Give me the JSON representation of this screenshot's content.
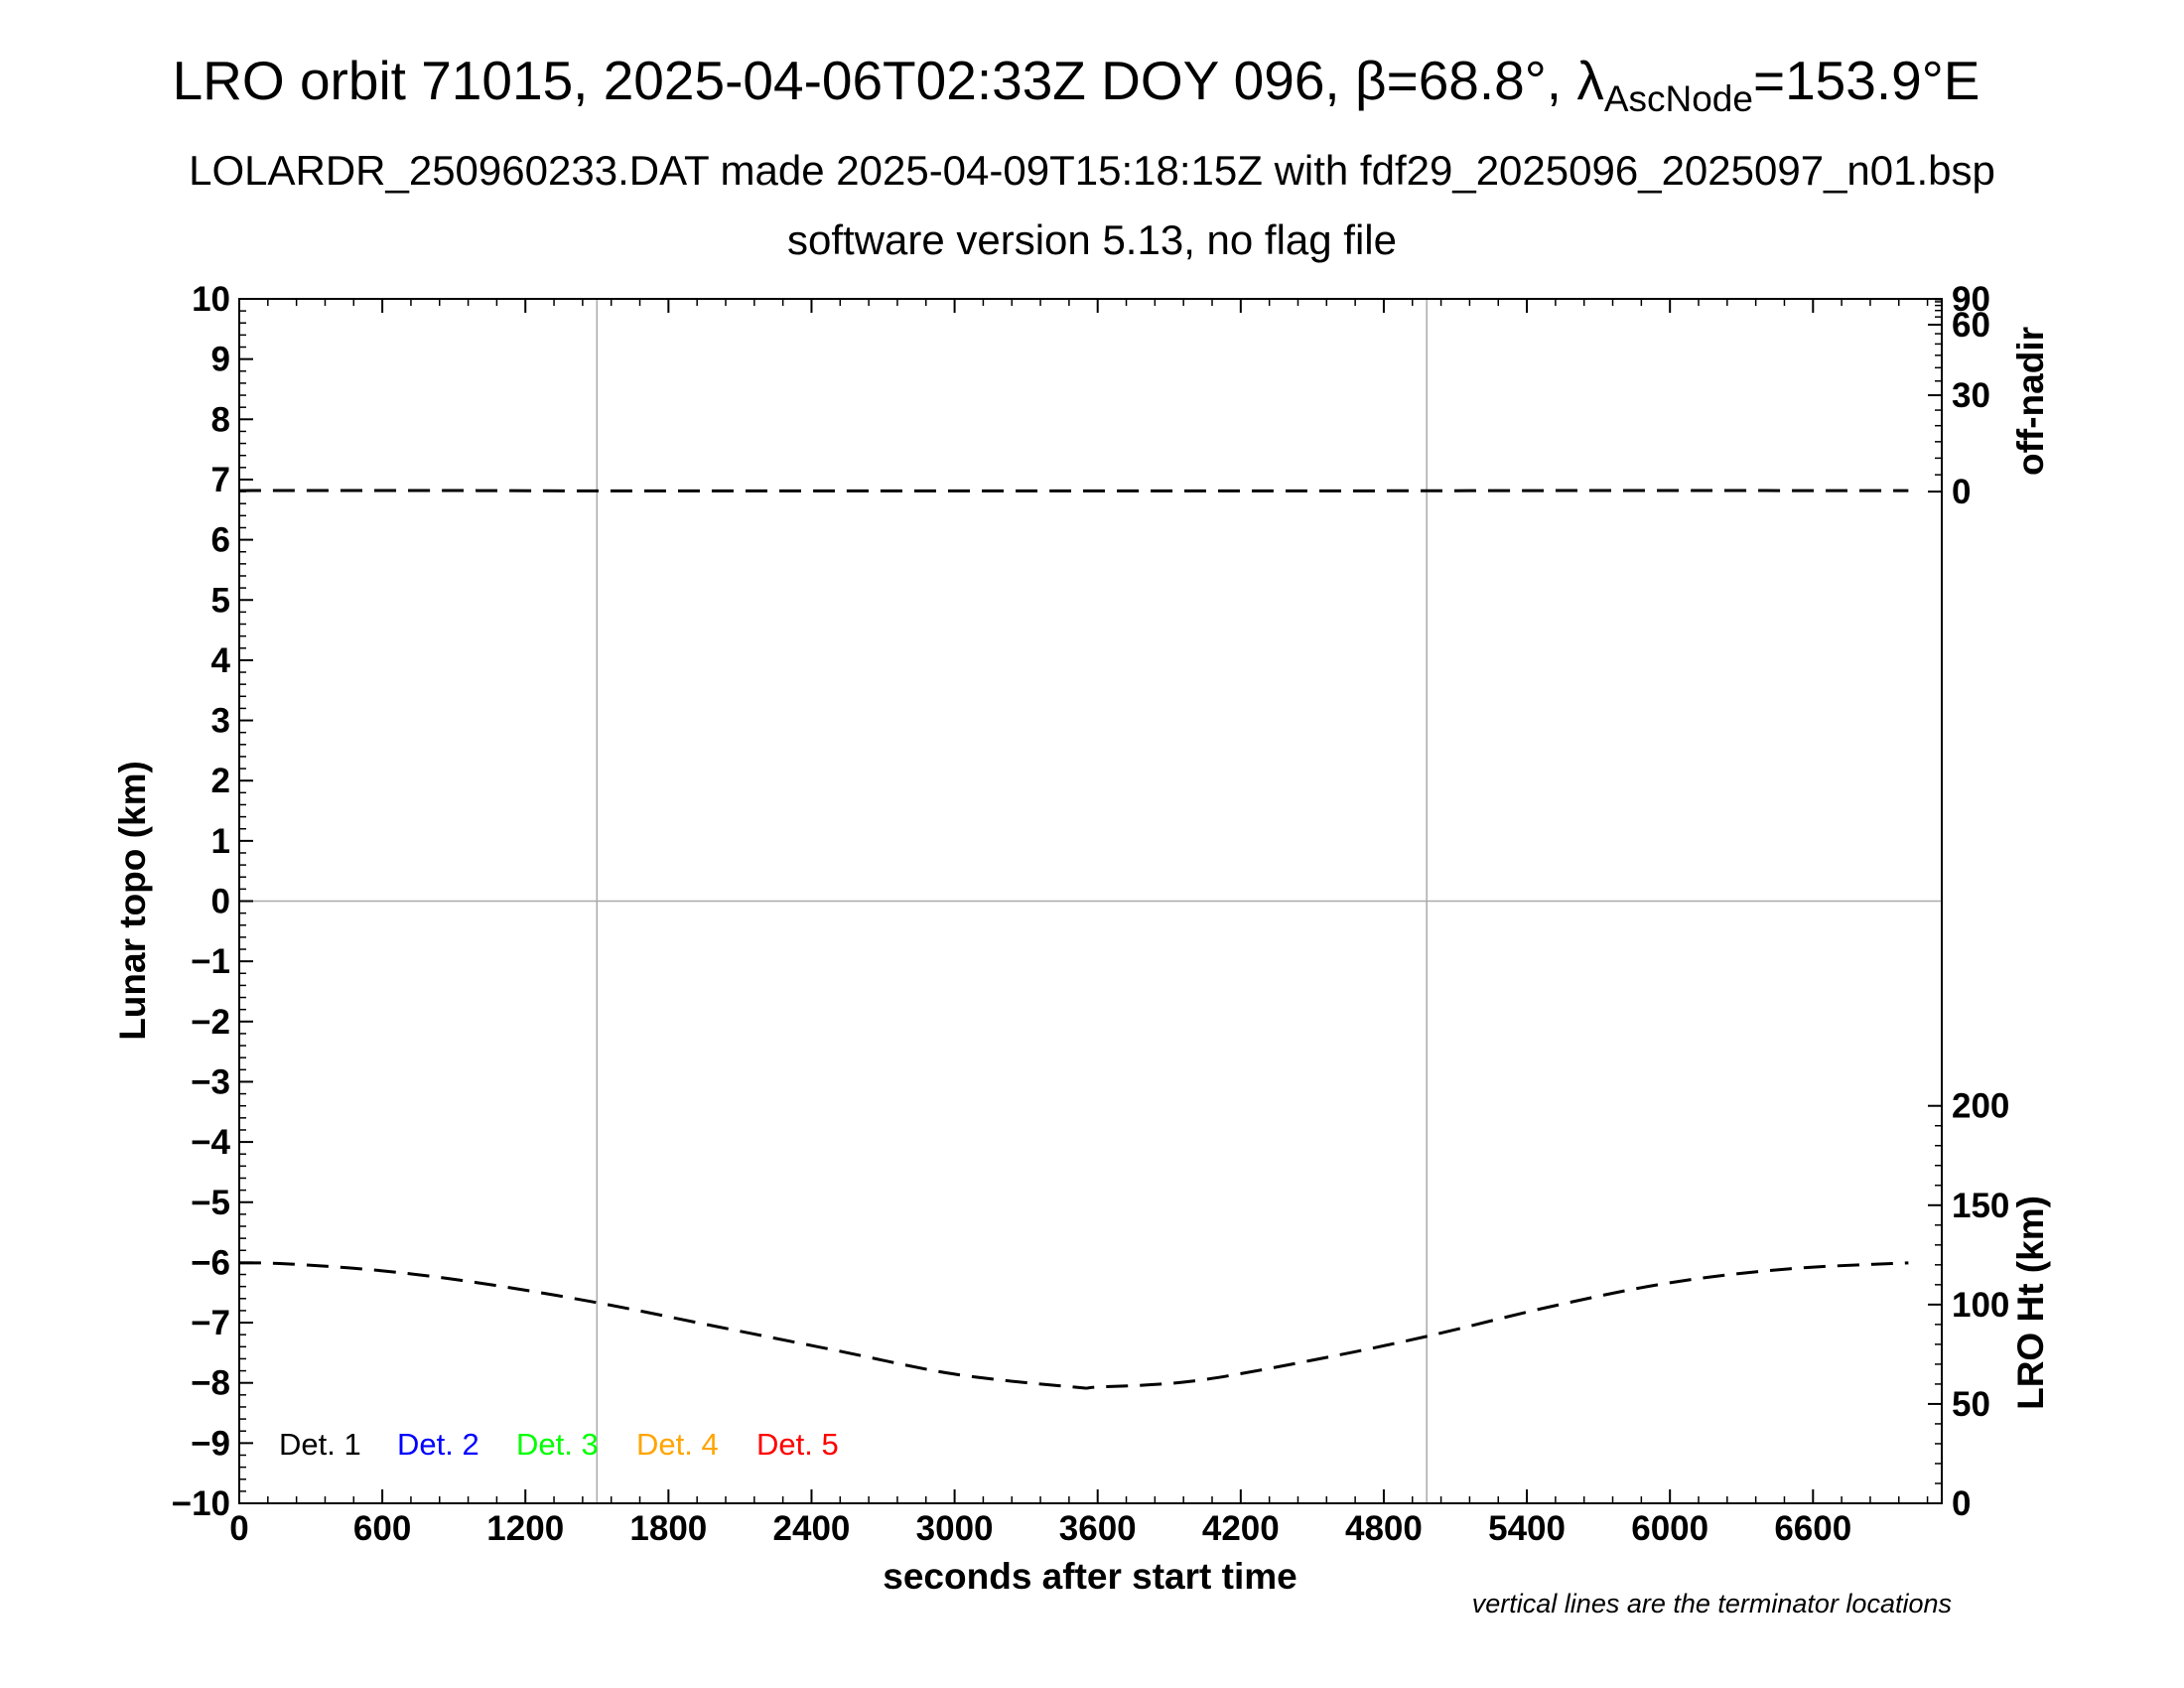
{
  "titles": {
    "line1_prefix": "LRO orbit 71015, 2025-04-06T02:33Z DOY 096, β=68.8°, λ",
    "line1_subscript": "AscNode",
    "line1_suffix": "=153.9°E",
    "line2": "LOLARDR_250960233.DAT made 2025-04-09T15:18:15Z with fdf29_2025096_2025097_n01.bsp",
    "line3": "software version 5.13, no flag file"
  },
  "note": "vertical lines are the terminator locations",
  "colors": {
    "det1": "#000000",
    "det2": "#0000ff",
    "det3": "#00ff00",
    "det4": "#ffa500",
    "det5": "#ff0000",
    "grid": "#aaaaaa"
  },
  "chart_data": {
    "type": "line",
    "xlabel": "seconds after start time",
    "ylabel_left": "Lunar topo (km)",
    "ylabel_right_top": "off-nadir",
    "ylabel_right_bottom": "LRO Ht (km)",
    "xlim": [
      0,
      7140
    ],
    "ylim_left": [
      -10,
      10
    ],
    "x_ticks": [
      "0",
      "600",
      "1200",
      "1800",
      "2400",
      "3000",
      "3600",
      "4200",
      "4800",
      "5400",
      "6000",
      "6600"
    ],
    "y_ticks_left": [
      "10",
      "9",
      "8",
      "7",
      "6",
      "5",
      "4",
      "3",
      "2",
      "1",
      "0",
      "−1",
      "−2",
      "−3",
      "−4",
      "−5",
      "−6",
      "−7",
      "−8",
      "−9",
      "−10"
    ],
    "offnadir_ticks": [
      "90",
      "60",
      "30",
      "0"
    ],
    "ht_ticks": [
      "200",
      "150",
      "100",
      "50",
      "0"
    ],
    "terminator_x": [
      1500,
      4980
    ],
    "legend": [
      "Det. 1",
      "Det. 2",
      "Det. 3",
      "Det. 4",
      "Det. 5"
    ],
    "series": [
      {
        "name": "off-nadir",
        "style": "dashed",
        "x": [
          0,
          1000,
          1500,
          2500,
          3600,
          4500,
          5500,
          6500,
          7000
        ],
        "y": [
          0.3,
          0.3,
          0.2,
          0.2,
          0.2,
          0.2,
          0.3,
          0.3,
          0.3
        ]
      },
      {
        "name": "LRO Ht (km)",
        "style": "dashed",
        "x": [
          0,
          200,
          600,
          1000,
          1500,
          2000,
          2500,
          3000,
          3500,
          3600,
          4000,
          4500,
          4980,
          5500,
          6000,
          6500,
          7000
        ],
        "y": [
          121,
          120.5,
          117,
          111,
          101,
          89,
          77,
          65,
          58.5,
          58.5,
          61.5,
          72,
          84,
          99,
          111,
          118,
          121
        ]
      }
    ]
  }
}
